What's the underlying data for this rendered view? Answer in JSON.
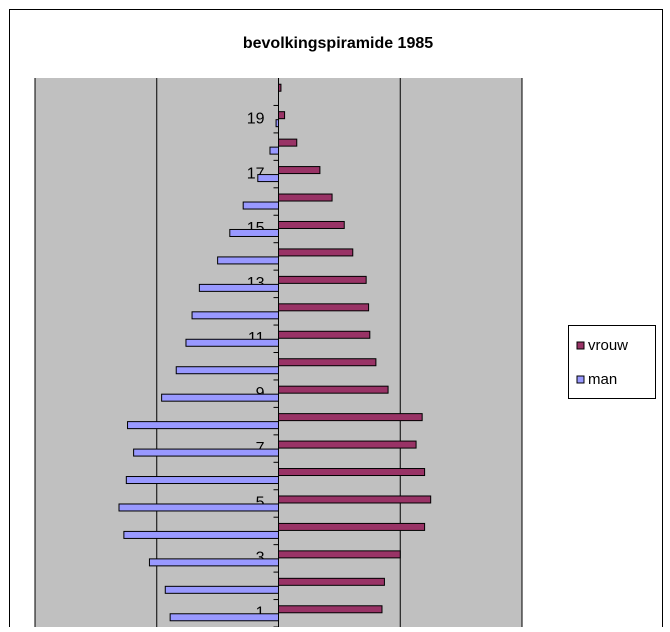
{
  "chart_data": {
    "type": "pyramid",
    "title": "bevolkingspiramide 1985",
    "categories": [
      "1",
      null,
      "3",
      null,
      "5",
      null,
      "7",
      null,
      "9",
      null,
      "11",
      null,
      "13",
      null,
      "15",
      null,
      "17",
      null,
      "19",
      null
    ],
    "series": [
      {
        "name": "vrouw",
        "color": "#993366",
        "values": [
          85,
          87,
          100,
          120,
          125,
          120,
          113,
          118,
          90,
          80,
          75,
          74,
          72,
          61,
          54,
          44,
          34,
          15,
          5,
          2
        ]
      },
      {
        "name": "man",
        "color": "#9999ff",
        "values": [
          -89,
          -93,
          -106,
          -127,
          -131,
          -125,
          -119,
          -124,
          -96,
          -84,
          -76,
          -71,
          -65,
          -50,
          -40,
          -29,
          -17,
          -7,
          -2,
          0
        ]
      }
    ],
    "xlim": [
      -200,
      200
    ],
    "xticks": [
      -200,
      -100,
      0,
      100,
      200
    ],
    "grid": true,
    "legend": "right"
  }
}
